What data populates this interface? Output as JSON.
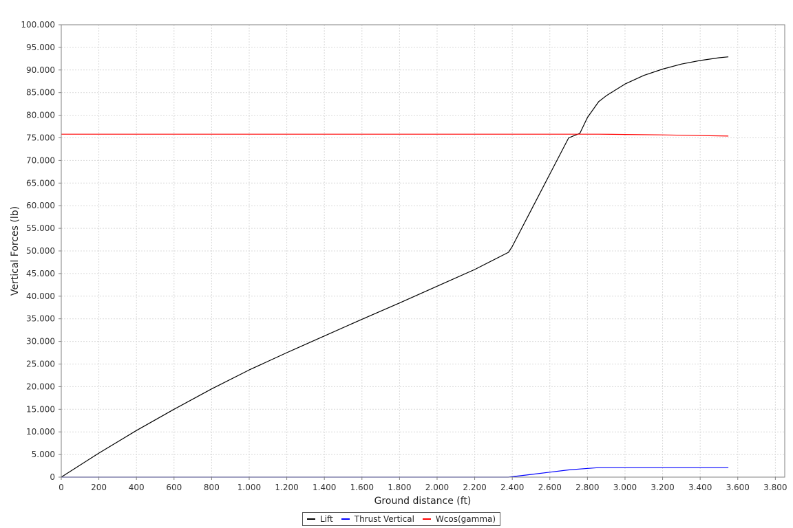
{
  "chart_data": {
    "type": "line",
    "xlabel": "Ground distance (ft)",
    "ylabel": "Vertical Forces (lb)",
    "xlim": [
      0,
      3850
    ],
    "ylim": [
      0,
      100000
    ],
    "grid": true,
    "legend_position": "bottom-center",
    "x_ticks": [
      0,
      200,
      400,
      600,
      800,
      1000,
      1200,
      1400,
      1600,
      1800,
      2000,
      2200,
      2400,
      2600,
      2800,
      3000,
      3200,
      3400,
      3600,
      3800
    ],
    "x_tick_labels": [
      "0",
      "200",
      "400",
      "600",
      "800",
      "1.000",
      "1.200",
      "1.400",
      "1.600",
      "1.800",
      "2.000",
      "2.200",
      "2.400",
      "2.600",
      "2.800",
      "3.000",
      "3.200",
      "3.400",
      "3.600",
      "3.800"
    ],
    "y_ticks": [
      0,
      5000,
      10000,
      15000,
      20000,
      25000,
      30000,
      35000,
      40000,
      45000,
      50000,
      55000,
      60000,
      65000,
      70000,
      75000,
      80000,
      85000,
      90000,
      95000,
      100000
    ],
    "y_tick_labels": [
      "0",
      "5.000",
      "10.000",
      "15.000",
      "20.000",
      "25.000",
      "30.000",
      "35.000",
      "40.000",
      "45.000",
      "50.000",
      "55.000",
      "60.000",
      "65.000",
      "70.000",
      "75.000",
      "80.000",
      "85.000",
      "90.000",
      "95.000",
      "100.000"
    ],
    "series": [
      {
        "name": "Lift",
        "color": "#000000",
        "x": [
          0,
          200,
          400,
          600,
          800,
          1000,
          1200,
          1400,
          1600,
          1800,
          2000,
          2200,
          2380,
          2400,
          2500,
          2600,
          2700,
          2760,
          2800,
          2860,
          2900,
          3000,
          3100,
          3200,
          3300,
          3400,
          3500,
          3550
        ],
        "y": [
          0,
          5300,
          10300,
          15000,
          19500,
          23700,
          27500,
          31200,
          34900,
          38500,
          42200,
          45900,
          49700,
          51000,
          59000,
          67000,
          75000,
          76000,
          79500,
          83000,
          84300,
          86900,
          88800,
          90200,
          91300,
          92100,
          92700,
          92900
        ]
      },
      {
        "name": "Thrust Vertical",
        "color": "#0000ff",
        "x": [
          0,
          500,
          1000,
          1500,
          2000,
          2380,
          2500,
          2600,
          2700,
          2760,
          2860,
          3000,
          3200,
          3400,
          3550
        ],
        "y": [
          0,
          0,
          0,
          0,
          0,
          0,
          600,
          1100,
          1600,
          1800,
          2100,
          2100,
          2100,
          2100,
          2100
        ]
      },
      {
        "name": "Wcos(gamma)",
        "color": "#ff0000",
        "x": [
          0,
          500,
          1000,
          1500,
          2000,
          2500,
          2760,
          2860,
          3000,
          3200,
          3400,
          3550
        ],
        "y": [
          75800,
          75800,
          75800,
          75800,
          75800,
          75800,
          75800,
          75800,
          75750,
          75650,
          75500,
          75400
        ]
      }
    ]
  }
}
